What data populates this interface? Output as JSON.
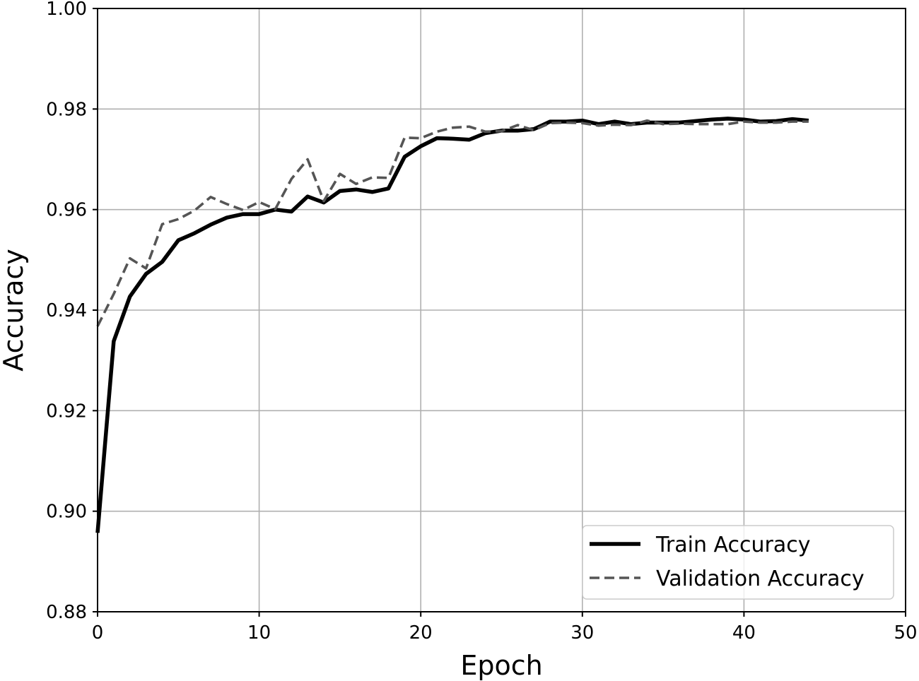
{
  "chart_data": {
    "type": "line",
    "xlabel": "Epoch",
    "ylabel": "Accuracy",
    "xlim": [
      0,
      50
    ],
    "ylim": [
      0.88,
      1.0
    ],
    "xticks": [
      0,
      10,
      20,
      30,
      40,
      50
    ],
    "xtick_labels": [
      "0",
      "10",
      "20",
      "30",
      "40",
      "50"
    ],
    "yticks": [
      0.88,
      0.9,
      0.92,
      0.94,
      0.96,
      0.98,
      1.0
    ],
    "ytick_labels": [
      "0.88",
      "0.90",
      "0.92",
      "0.94",
      "0.96",
      "0.98",
      "1.00"
    ],
    "grid": true,
    "legend_position": "lower-right",
    "x": [
      0,
      1,
      2,
      3,
      4,
      5,
      6,
      7,
      8,
      9,
      10,
      11,
      12,
      13,
      14,
      15,
      16,
      17,
      18,
      19,
      20,
      21,
      22,
      23,
      24,
      25,
      26,
      27,
      28,
      29,
      30,
      31,
      32,
      33,
      34,
      35,
      36,
      37,
      38,
      39,
      40,
      41,
      42,
      43,
      44
    ],
    "series": [
      {
        "name": "Train Accuracy",
        "color": "#000000",
        "style": "solid",
        "values": [
          0.8957,
          0.9338,
          0.9427,
          0.9472,
          0.9496,
          0.9539,
          0.9553,
          0.957,
          0.9584,
          0.9591,
          0.9591,
          0.96,
          0.9596,
          0.9626,
          0.9614,
          0.9637,
          0.964,
          0.9635,
          0.9642,
          0.9705,
          0.9726,
          0.9742,
          0.9741,
          0.9739,
          0.9752,
          0.9757,
          0.9757,
          0.976,
          0.9775,
          0.9775,
          0.9777,
          0.977,
          0.9775,
          0.977,
          0.9773,
          0.9773,
          0.9773,
          0.9776,
          0.9779,
          0.9781,
          0.9779,
          0.9775,
          0.9776,
          0.978,
          0.9777
        ]
      },
      {
        "name": "Validation Accuracy",
        "color": "#555555",
        "style": "dashed",
        "values": [
          0.9368,
          0.9432,
          0.9503,
          0.9483,
          0.9571,
          0.9581,
          0.9598,
          0.9625,
          0.9611,
          0.9599,
          0.9615,
          0.9601,
          0.9661,
          0.97,
          0.9617,
          0.9671,
          0.9651,
          0.9664,
          0.9663,
          0.9743,
          0.9742,
          0.9755,
          0.9763,
          0.9765,
          0.9755,
          0.9756,
          0.9768,
          0.9758,
          0.9772,
          0.9773,
          0.9772,
          0.9767,
          0.9769,
          0.9768,
          0.9777,
          0.977,
          0.9771,
          0.977,
          0.977,
          0.977,
          0.9775,
          0.9773,
          0.9773,
          0.9775,
          0.9775
        ]
      }
    ]
  }
}
